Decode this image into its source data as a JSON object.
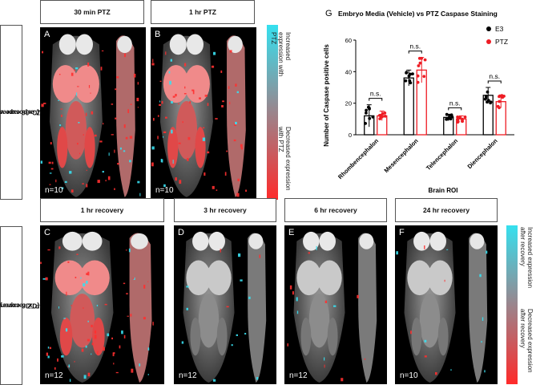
{
  "top_row": {
    "headers": [
      "30 min PTZ",
      "1 hr PTZ"
    ],
    "side_label_line1": "PTZ exposure vs. media",
    "side_label_line2": "(Cx36 expression)",
    "panels": [
      {
        "letter": "A",
        "n": "n=10",
        "tone": "red"
      },
      {
        "letter": "B",
        "n": "n=10",
        "tone": "red"
      }
    ],
    "colorbar": {
      "top_text": "Increased expression with PTZ",
      "bottom_text": "Decreased expression with PTZ",
      "top_color": "#35e0ef",
      "bottom_color": "#ff2a2a"
    }
  },
  "bottom_row": {
    "headers": [
      "1 hr recovery",
      "3 hr recovery",
      "6 hr recovery",
      "24 hr recovery"
    ],
    "side_label_line1": "Post-PTZ recovery vs. media",
    "side_label_line2": "(Cx36 expression)",
    "panels": [
      {
        "letter": "C",
        "n": "n=12",
        "tone": "red"
      },
      {
        "letter": "D",
        "n": "n=12",
        "tone": "gray"
      },
      {
        "letter": "E",
        "n": "n=12",
        "tone": "gray"
      },
      {
        "letter": "F",
        "n": "n=10",
        "tone": "gray"
      }
    ],
    "colorbar": {
      "top_text": "Increased expression after recovery",
      "bottom_text": "Decreased expression after recovery",
      "top_color": "#35e0ef",
      "bottom_color": "#ff2a2a"
    }
  },
  "chart_data": {
    "panel_letter": "G",
    "type": "bar",
    "title": "Embryo Media (Vehicle) vs PTZ Caspase Staining",
    "xlabel": "Brain  ROI",
    "ylabel": "Number of Caspase positive cells",
    "ylim": [
      0,
      60
    ],
    "yticks": [
      "0",
      "20",
      "40",
      "60"
    ],
    "categories": [
      "Rhombencephalon",
      "Mesencephalon",
      "Telencephalon",
      "Diencephalon"
    ],
    "series": [
      {
        "name": "E3",
        "color": "#000000",
        "values": [
          12,
          36,
          11,
          25
        ],
        "errors": [
          7,
          5,
          2,
          5
        ]
      },
      {
        "name": "PTZ",
        "color": "#ee1c24",
        "values": [
          12,
          41,
          10,
          21
        ],
        "errors": [
          3,
          8,
          2,
          4
        ]
      }
    ],
    "annotations": [
      "n.s.",
      "n.s.",
      "n.s.",
      "n.s."
    ],
    "legend_position": "top-right"
  }
}
